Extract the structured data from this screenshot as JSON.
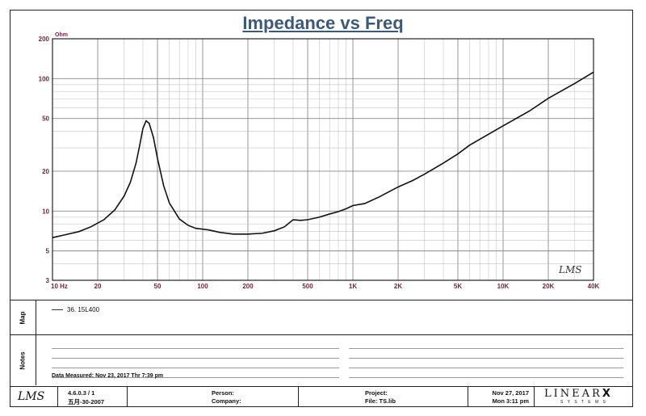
{
  "chart_data": {
    "type": "line",
    "title": "Impedance vs Freq",
    "ylabel": "Ohm",
    "xscale": "log",
    "yscale": "log",
    "xlim": [
      10,
      40000
    ],
    "ylim": [
      3,
      200
    ],
    "x_ticks": [
      10,
      20,
      50,
      100,
      200,
      500,
      1000,
      2000,
      5000,
      10000,
      20000,
      40000
    ],
    "x_tick_labels": [
      "10 Hz",
      "20",
      "50",
      "100",
      "200",
      "500",
      "1K",
      "2K",
      "5K",
      "10K",
      "20K",
      "40K"
    ],
    "y_ticks": [
      3,
      5,
      10,
      20,
      50,
      100,
      200
    ],
    "y_tick_labels": [
      "3",
      "5",
      "10",
      "20",
      "50",
      "100",
      "200"
    ],
    "grid": true,
    "watermark": "LMS",
    "series": [
      {
        "name": "36. 15L400",
        "color": "#111111",
        "x": [
          10,
          12,
          15,
          18,
          22,
          26,
          30,
          33,
          36,
          38,
          40,
          42,
          44,
          47,
          50,
          55,
          60,
          70,
          80,
          90,
          100,
          110,
          130,
          160,
          200,
          250,
          300,
          350,
          400,
          450,
          500,
          600,
          700,
          800,
          900,
          1000,
          1200,
          1500,
          2000,
          2500,
          3000,
          4000,
          5000,
          6000,
          8000,
          10000,
          15000,
          20000,
          30000,
          40000
        ],
        "values": [
          6.3,
          6.6,
          7.0,
          7.6,
          8.6,
          10.2,
          13.0,
          16.5,
          23.0,
          31.0,
          42.0,
          48.0,
          46.0,
          36.0,
          25.0,
          15.5,
          11.5,
          8.7,
          7.8,
          7.4,
          7.3,
          7.2,
          6.9,
          6.7,
          6.7,
          6.8,
          7.1,
          7.6,
          8.6,
          8.5,
          8.6,
          9.0,
          9.5,
          9.9,
          10.4,
          11.0,
          11.4,
          12.8,
          15.2,
          17.0,
          19.0,
          23.0,
          27.0,
          31.5,
          38.0,
          44.0,
          57.0,
          71.0,
          92.0,
          112.0
        ]
      }
    ]
  },
  "map_panel": {
    "label": "Map",
    "entry": "36. 15L400"
  },
  "notes_panel": {
    "label": "Notes",
    "measured": "Data Measured: Nov 23, 2017  Thr  7:39 pm"
  },
  "footer": {
    "logo": "LMS",
    "version": "4.6.0.3 / 1",
    "version_date": "五月-30-2007",
    "person_label": "Person:",
    "company_label": "Company:",
    "project_label": "Project:",
    "file_label": "File: TS.lib",
    "date": "Nov 27, 2017",
    "time": "Mon  3:11 pm",
    "brand_top": "LINEAR",
    "brand_x": "X",
    "brand_bottom": "S Y S T E M S"
  }
}
